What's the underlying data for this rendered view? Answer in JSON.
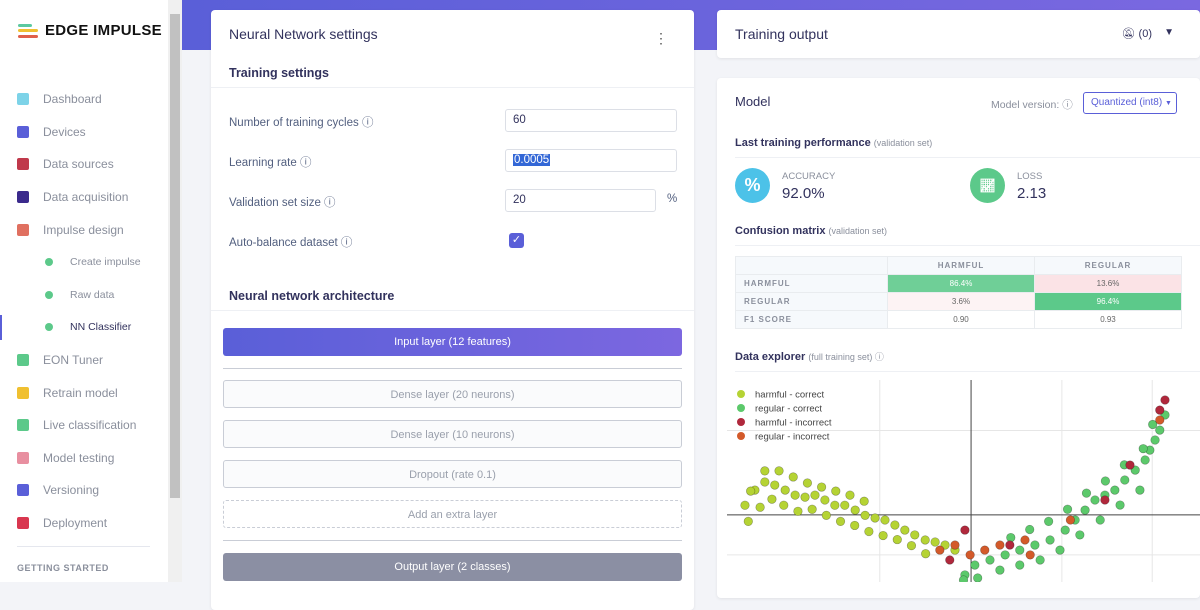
{
  "brand": {
    "name": "EDGE IMPULSE"
  },
  "sidebar": {
    "items": [
      {
        "label": "Dashboard",
        "icon": "monitor-icon",
        "color": "#7dd3e8"
      },
      {
        "label": "Devices",
        "icon": "chip-icon",
        "color": "#5a5fd8"
      },
      {
        "label": "Data sources",
        "icon": "wand-icon",
        "color": "#c0394b"
      },
      {
        "label": "Data acquisition",
        "icon": "database-icon",
        "color": "#3b2a8c"
      },
      {
        "label": "Impulse design",
        "icon": "pulse-icon",
        "color": "#e07060"
      },
      {
        "label": "Create impulse",
        "sub": true
      },
      {
        "label": "Raw data",
        "sub": true
      },
      {
        "label": "NN Classifier",
        "sub": true,
        "active": true
      },
      {
        "label": "EON Tuner",
        "icon": "compass-icon",
        "color": "#5cc98a"
      },
      {
        "label": "Retrain model",
        "icon": "shuffle-icon",
        "color": "#f0c030"
      },
      {
        "label": "Live classification",
        "icon": "live-icon",
        "color": "#5cc98a"
      },
      {
        "label": "Model testing",
        "icon": "clipboard-icon",
        "color": "#e88fa0"
      },
      {
        "label": "Versioning",
        "icon": "branch-icon",
        "color": "#5a5fd8"
      },
      {
        "label": "Deployment",
        "icon": "cube-icon",
        "color": "#d9364f"
      }
    ],
    "section": "GETTING STARTED"
  },
  "nn": {
    "title": "Neural Network settings",
    "training_title": "Training settings",
    "cycles_label": "Number of training cycles ⓘ",
    "cycles": "60",
    "lr_label": "Learning rate ⓘ",
    "lr": "0.0005",
    "val_label": "Validation set size ⓘ",
    "val": "20",
    "val_unit": "%",
    "balance_label": "Auto-balance dataset ⓘ",
    "balance": true,
    "arch_title": "Neural network architecture",
    "layers": [
      "Input layer (12 features)",
      "Dense layer (20 neurons)",
      "Dense layer (10 neurons)",
      "Dropout (rate 0.1)",
      "Add an extra layer",
      "Output layer (2 classes)"
    ]
  },
  "output": {
    "title": "Training output",
    "notif": "(0)"
  },
  "model": {
    "title": "Model",
    "version_label": "Model version: ⓘ",
    "version": "Quantized (int8)",
    "perf_title": "Last training performance",
    "perf_note": "(validation set)",
    "accuracy_label": "ACCURACY",
    "accuracy": "92.0%",
    "loss_label": "LOSS",
    "loss": "2.13",
    "cm_title": "Confusion matrix",
    "cm_note": "(validation set)",
    "cm": {
      "cols": [
        "HARMFUL",
        "REGULAR"
      ],
      "rows": [
        {
          "label": "HARMFUL",
          "v": [
            "86.4%",
            "13.6%"
          ]
        },
        {
          "label": "REGULAR",
          "v": [
            "3.6%",
            "96.4%"
          ]
        },
        {
          "label": "F1 SCORE",
          "v": [
            "0.90",
            "0.93"
          ]
        }
      ]
    },
    "de_title": "Data explorer",
    "de_note": "(full training set) ⓘ"
  },
  "chart_data": {
    "type": "scatter",
    "xlim": [
      0,
      100
    ],
    "ylim": [
      0,
      100
    ],
    "origin": [
      51.6,
      33.2
    ],
    "legend": "top-left",
    "series": [
      {
        "name": "harmful - correct",
        "color": "#b5d334",
        "points": [
          [
            3.8,
            38
          ],
          [
            5.9,
            45.5
          ],
          [
            8,
            49.5
          ],
          [
            10.1,
            48
          ],
          [
            12.3,
            45.5
          ],
          [
            14.4,
            43
          ],
          [
            16.5,
            42
          ],
          [
            18.6,
            43
          ],
          [
            20.7,
            40.6
          ],
          [
            22.8,
            38
          ],
          [
            24.9,
            38
          ],
          [
            27.1,
            35.6
          ],
          [
            29.2,
            33
          ],
          [
            31.3,
            31.7
          ],
          [
            33.4,
            30.7
          ],
          [
            35.5,
            28.2
          ],
          [
            37.6,
            25.7
          ],
          [
            39.7,
            23.3
          ],
          [
            41.9,
            20.8
          ],
          [
            44,
            19.8
          ],
          [
            46.1,
            18.3
          ],
          [
            48.2,
            15.8
          ],
          [
            4.5,
            30
          ],
          [
            7,
            37
          ],
          [
            9.5,
            41
          ],
          [
            12,
            38
          ],
          [
            15,
            35
          ],
          [
            18,
            36
          ],
          [
            21,
            33
          ],
          [
            24,
            30
          ],
          [
            27,
            28
          ],
          [
            30,
            25
          ],
          [
            33,
            23
          ],
          [
            36,
            21
          ],
          [
            39,
            18
          ],
          [
            42,
            14
          ],
          [
            5,
            45
          ],
          [
            8,
            55
          ],
          [
            11,
            55
          ],
          [
            14,
            52
          ],
          [
            17,
            49
          ],
          [
            20,
            47
          ],
          [
            23,
            45
          ],
          [
            26,
            43
          ],
          [
            29,
            40
          ]
        ]
      },
      {
        "name": "regular - correct",
        "color": "#5cc96b",
        "points": [
          [
            50.3,
            3.5
          ],
          [
            52.4,
            8.4
          ],
          [
            55.6,
            10.9
          ],
          [
            58.8,
            13.4
          ],
          [
            61.9,
            15.8
          ],
          [
            65.1,
            18.3
          ],
          [
            68.3,
            20.8
          ],
          [
            71.5,
            25.7
          ],
          [
            73.6,
            30.7
          ],
          [
            75.7,
            35.6
          ],
          [
            77.8,
            40.6
          ],
          [
            79.9,
            43
          ],
          [
            82,
            45.5
          ],
          [
            84.1,
            50.5
          ],
          [
            86.3,
            55.4
          ],
          [
            88.4,
            60.4
          ],
          [
            89.4,
            65.3
          ],
          [
            90.5,
            70.3
          ],
          [
            91.5,
            75.2
          ],
          [
            92.6,
            82.7
          ],
          [
            57.7,
            5.9
          ],
          [
            61.9,
            8.4
          ],
          [
            66.2,
            10.9
          ],
          [
            70.4,
            15.8
          ],
          [
            74.6,
            23.3
          ],
          [
            78.9,
            30.7
          ],
          [
            83.1,
            38.1
          ],
          [
            87.3,
            45.5
          ],
          [
            60,
            22
          ],
          [
            64,
            26
          ],
          [
            68,
            30
          ],
          [
            72,
            36
          ],
          [
            76,
            44
          ],
          [
            80,
            50
          ],
          [
            84,
            58
          ],
          [
            88,
            66
          ],
          [
            90,
            78
          ],
          [
            50,
            1
          ],
          [
            53,
            2
          ]
        ]
      },
      {
        "name": "harmful - incorrect",
        "color": "#b0283c",
        "points": [
          [
            50.3,
            25.7
          ],
          [
            47.1,
            10.9
          ],
          [
            85.2,
            57.9
          ],
          [
            91.5,
            85.1
          ],
          [
            92.6,
            90.1
          ],
          [
            79.9,
            40.6
          ],
          [
            59.8,
            18.3
          ]
        ]
      },
      {
        "name": "regular - incorrect",
        "color": "#d35a2a",
        "points": [
          [
            45,
            15.8
          ],
          [
            48.2,
            18.3
          ],
          [
            51.4,
            13.4
          ],
          [
            57.7,
            18.3
          ],
          [
            63,
            20.8
          ],
          [
            64.1,
            13.4
          ],
          [
            54.5,
            15.8
          ],
          [
            72.6,
            30.7
          ],
          [
            91.5,
            80.2
          ]
        ]
      }
    ]
  }
}
